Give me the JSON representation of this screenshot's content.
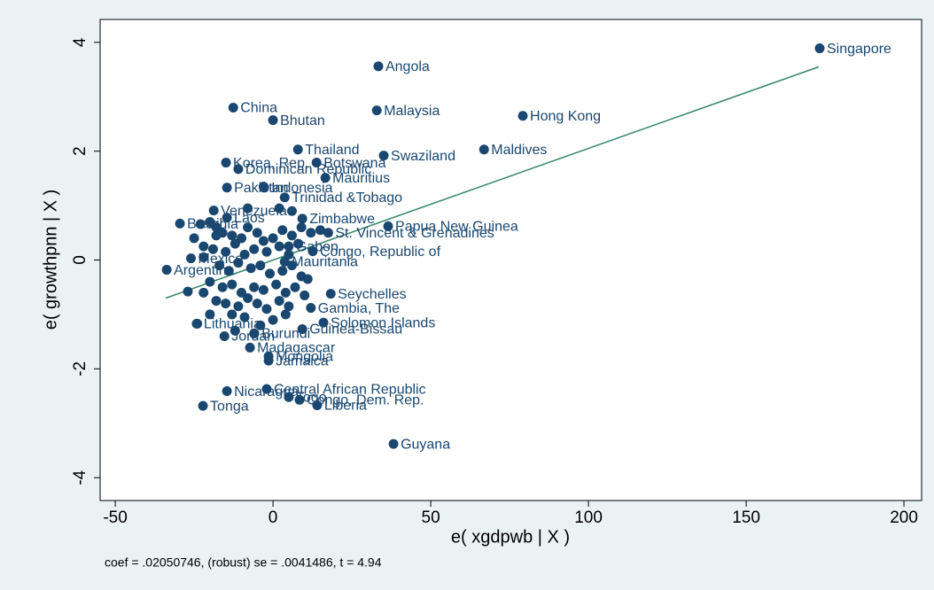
{
  "chart_data": {
    "type": "scatter",
    "x_label": "e( xgdpwb | X )",
    "y_label": "e( growthpnn | X )",
    "note": "coef = .02050746, (robust) se = .0041486, t = 4.94",
    "xlim": [
      -54.8,
      205.6
    ],
    "xticks": [
      -50,
      0,
      50,
      100,
      150,
      200
    ],
    "ylim": [
      -4.42,
      4.42
    ],
    "yticks": [
      -4,
      -2,
      0,
      2,
      4
    ],
    "color": "#1a476f",
    "fit_color": "#3a8a6c",
    "x": [
      173.3,
      33.4,
      -12.6,
      0,
      32.9,
      79.2,
      7.9,
      35.1,
      66.9,
      -14.9,
      13.8,
      -11,
      16.6,
      -14.6,
      -2.8,
      3.7,
      -18.8,
      9.3,
      36.5,
      17.5,
      -29.5,
      5,
      12.6,
      3.7,
      -33.7,
      -26,
      18.3,
      12,
      16,
      9.3,
      -24.2,
      -15.4,
      -5.9,
      -7.3,
      -1.4,
      -1.4,
      -14.6,
      -2,
      5,
      8.4,
      14,
      -22.2,
      38.2,
      -14.6,
      -23,
      -20,
      -18,
      -16,
      -13,
      -10,
      -8,
      -5,
      -3,
      0,
      3,
      6,
      9,
      12,
      15,
      -22,
      -19,
      -15,
      -12,
      -9,
      -6,
      -2,
      2,
      5,
      8,
      -25,
      -17,
      -14,
      -11,
      -7,
      -4,
      -1,
      3,
      6,
      9,
      -20,
      -16,
      -13,
      -10,
      -6,
      -3,
      1,
      4,
      7,
      10,
      -27,
      -22,
      -18,
      -15,
      -11,
      -8,
      -5,
      -2,
      2,
      5,
      -20,
      -13,
      -9,
      -4,
      0,
      4,
      -24,
      -12,
      -6,
      -22,
      -8,
      -3,
      2,
      6,
      -18,
      11
    ],
    "values": [
      3.89,
      3.56,
      2.8,
      2.57,
      2.75,
      2.65,
      2.03,
      1.92,
      2.03,
      1.79,
      1.79,
      1.67,
      1.51,
      1.33,
      1.33,
      1.15,
      0.91,
      0.76,
      0.62,
      0.5,
      0.67,
      0.25,
      0.16,
      -0.03,
      -0.18,
      0.03,
      -0.62,
      -0.88,
      -1.15,
      -1.27,
      -1.17,
      -1.4,
      -1.35,
      -1.61,
      -1.77,
      -1.85,
      -2.41,
      -2.37,
      -2.52,
      -2.57,
      -2.67,
      -2.68,
      -3.38,
      0.78,
      0.66,
      0.7,
      0.6,
      0.5,
      0.45,
      0.4,
      0.6,
      0.5,
      0.35,
      0.4,
      0.55,
      0.45,
      0.6,
      0.5,
      0.55,
      0.25,
      0.2,
      0.15,
      0.3,
      0.1,
      0.2,
      0.15,
      0.25,
      0.1,
      0.3,
      0.4,
      -0.1,
      -0.2,
      -0.05,
      -0.15,
      -0.1,
      -0.25,
      -0.2,
      -0.1,
      -0.3,
      -0.4,
      -0.5,
      -0.45,
      -0.6,
      -0.5,
      -0.55,
      -0.45,
      -0.6,
      -0.5,
      -0.65,
      -0.58,
      -0.6,
      -0.75,
      -0.8,
      -0.85,
      -0.7,
      -0.8,
      -0.9,
      -0.75,
      -0.85,
      -1.0,
      -1.0,
      -1.05,
      -1.2,
      -1.1,
      -1.0,
      -1.17,
      -1.3,
      -1.35,
      0.05,
      0.95,
      1.35,
      0.95,
      0.9,
      0.45,
      -0.35
    ],
    "point_labels": [
      "Singapore",
      "Angola",
      "China",
      "Bhutan",
      "Malaysia",
      "Hong Kong",
      "Thailand",
      "Swaziland",
      "Maldives",
      "Korea, Rep.",
      "Botswana",
      "Dominican Republic",
      "Mauritius",
      "Pakistan",
      "Indonesia",
      "Trinidad &Tobago",
      "Venezuela",
      "Zimbabwe",
      "Papua New Guinea",
      "St. Vincent & Grenadines",
      "Brazil",
      "Gabon",
      "Congo, Republic of",
      "Mauritania",
      "Argentina",
      "Mexico",
      "Seychelles",
      "Gambia, The",
      "Solomon Islands",
      "Guinea-Bissau",
      "Lithuania",
      "Jordan",
      "Burundi",
      "Madagascar",
      "Mongolia",
      "Jamaica",
      "Nicaragua",
      "Central African Republic",
      "Togo",
      "Congo, Dem. Rep.",
      "Liberia",
      "Tonga",
      "Guyana",
      "Laos",
      "India",
      null,
      null,
      null,
      null,
      null,
      null,
      null,
      null,
      null,
      null,
      null,
      null,
      null,
      null,
      null,
      null,
      null,
      null,
      null,
      null,
      null,
      null,
      null,
      null,
      null,
      null,
      null,
      null,
      null,
      null,
      null,
      null,
      null,
      null,
      null,
      null,
      null,
      null,
      null,
      null,
      null,
      null,
      null,
      null,
      null,
      null,
      null,
      null,
      null,
      null,
      null,
      null,
      null,
      null,
      null,
      null,
      null,
      null,
      null,
      null,
      null,
      null,
      null,
      null,
      null,
      null,
      null,
      null,
      null,
      null
    ],
    "fit": {
      "x": [
        -34,
        173
      ],
      "values": [
        -0.7,
        3.55
      ]
    }
  }
}
